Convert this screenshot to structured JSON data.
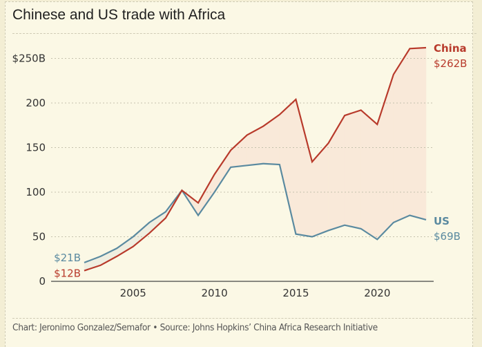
{
  "chart_data": {
    "type": "line",
    "title": "Chinese and US trade with Africa",
    "xlabel": "",
    "ylabel": "",
    "x": [
      2002,
      2003,
      2004,
      2005,
      2006,
      2007,
      2008,
      2009,
      2010,
      2011,
      2012,
      2013,
      2014,
      2015,
      2016,
      2017,
      2018,
      2019,
      2020,
      2021,
      2022,
      2023
    ],
    "series": [
      {
        "name": "China",
        "color": "#b83a2b",
        "values": [
          12,
          18,
          28,
          39,
          54,
          71,
          102,
          88,
          120,
          147,
          164,
          174,
          187,
          204,
          134,
          155,
          186,
          192,
          176,
          232,
          261,
          262
        ],
        "end_label": "China",
        "end_value_label": "$262B",
        "start_value_label": "$12B"
      },
      {
        "name": "US",
        "color": "#5a8aa0",
        "values": [
          21,
          28,
          37,
          50,
          66,
          78,
          102,
          74,
          100,
          128,
          130,
          132,
          131,
          53,
          50,
          57,
          63,
          59,
          47,
          66,
          74,
          69
        ],
        "end_label": "US",
        "end_value_label": "$69B",
        "start_value_label": "$21B"
      }
    ],
    "fill_between": {
      "china_above_color": "#f9e9d9",
      "us_above_color": "#efeee0"
    },
    "ylim": [
      0,
      250
    ],
    "xlim": [
      2002,
      2023
    ],
    "yticks": [
      0,
      50,
      100,
      150,
      200,
      250
    ],
    "ytick_labels": [
      "0",
      "50",
      "100",
      "150",
      "200",
      "$250B"
    ],
    "xticks": [
      2005,
      2010,
      2015,
      2020
    ],
    "xtick_labels": [
      "2005",
      "2010",
      "2015",
      "2020"
    ],
    "grid": "horizontal-dotted",
    "legend": "direct-labels-right"
  },
  "footer": {
    "credit": "Chart: Jeronimo Gonzalez/Semafor • Source: Johns Hopkins’ China Africa Research Initiative"
  }
}
